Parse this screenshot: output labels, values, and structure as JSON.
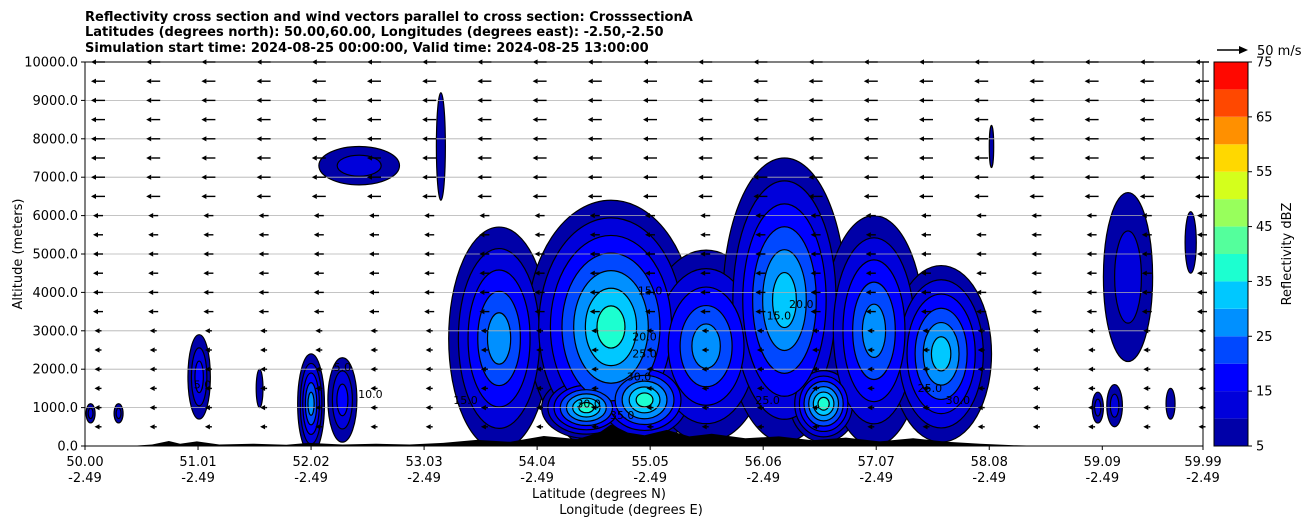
{
  "chart_data": {
    "type": "contour-cross-section",
    "title_lines": [
      "Reflectivity cross section and wind vectors parallel to cross section: CrosssectionA",
      "Latitudes (degrees north): 50.00,60.00, Longitudes (degrees east): -2.50,-2.50",
      "Simulation start time: 2024-08-25 00:00:00, Valid time: 2024-08-25 13:00:00"
    ],
    "ylabel": "Altitude (meters)",
    "xlabel_1": "Latitude (degrees N)",
    "xlabel_2": "Longitude (degrees E)",
    "ylim": [
      0,
      10000
    ],
    "y_ticks": [
      0,
      1000,
      2000,
      3000,
      4000,
      5000,
      6000,
      7000,
      8000,
      9000,
      10000
    ],
    "y_tick_labels": [
      "0.0",
      "1000.0",
      "2000.0",
      "3000.0",
      "4000.0",
      "5000.0",
      "6000.0",
      "7000.0",
      "8000.0",
      "9000.0",
      "10000.0"
    ],
    "xlim": [
      50.0,
      59.99
    ],
    "x_ticks": [
      50.0,
      51.01,
      52.02,
      53.03,
      54.04,
      55.05,
      56.06,
      57.07,
      58.08,
      59.09,
      59.99
    ],
    "x_tick_lat_labels": [
      "50.00",
      "51.01",
      "52.02",
      "53.03",
      "54.04",
      "55.05",
      "56.06",
      "57.07",
      "58.08",
      "59.09",
      "59.99"
    ],
    "x_tick_lon_labels": [
      "-2.49",
      "-2.49",
      "-2.49",
      "-2.49",
      "-2.49",
      "-2.49",
      "-2.49",
      "-2.49",
      "-2.49",
      "-2.49",
      "-2.49"
    ],
    "grid": "horizontal",
    "quiver_key_label": "50 m/s",
    "colorbar": {
      "label": "Reflectivity dBZ",
      "levels": [
        5,
        10,
        15,
        20,
        25,
        30,
        35,
        40,
        45,
        50,
        55,
        60,
        65,
        70,
        75
      ],
      "tick_labels": [
        "5",
        "15",
        "25",
        "35",
        "45",
        "55",
        "65",
        "75"
      ],
      "colors": [
        "#0000a8",
        "#0000db",
        "#0000ff",
        "#0048ff",
        "#0090ff",
        "#00c8ff",
        "#1cffd0",
        "#54ff9c",
        "#98ff5c",
        "#d4ff1c",
        "#ffd800",
        "#ff9000",
        "#ff4800",
        "#ff0800",
        "#a40000"
      ]
    },
    "contour_labels": [
      "5.0",
      "10.0",
      "15.0",
      "20.0",
      "25.0",
      "30.0",
      "35.0"
    ],
    "wind_direction": "westward (toward decreasing latitude)",
    "terrain_fill": "black"
  }
}
